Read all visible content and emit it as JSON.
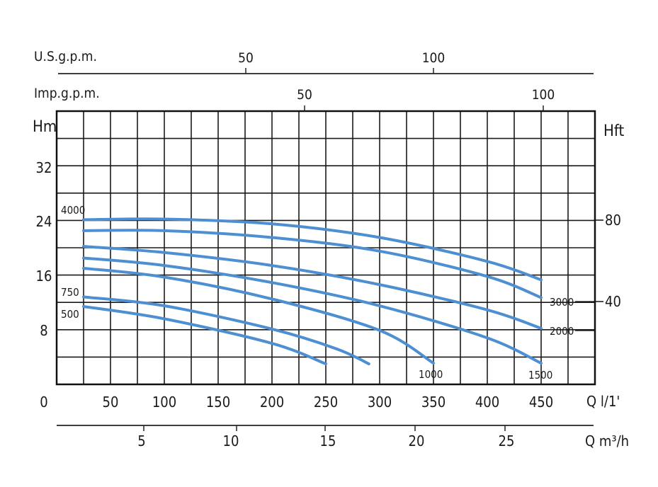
{
  "chart_data": {
    "type": "line",
    "title": "",
    "xlabel": "Q l/1'",
    "ylabel": "Hm",
    "y2label": "Hft",
    "xlim": [
      0,
      500
    ],
    "ylim": [
      0,
      40
    ],
    "y2_ticks": [
      "40",
      "80"
    ],
    "x_ticks": [
      "0",
      "50",
      "100",
      "150",
      "200",
      "250",
      "300",
      "350",
      "400",
      "450"
    ],
    "y_ticks": [
      "8",
      "16",
      "24",
      "32"
    ],
    "grid": true,
    "line_color": "#4d8fd1",
    "top_axis_usgpm": {
      "label": "U.S.g.p.m.",
      "ticks": [
        "50",
        "100"
      ]
    },
    "top_axis_impgpm": {
      "label": "Imp.g.p.m.",
      "ticks": [
        "50",
        "100"
      ]
    },
    "bottom_axis_m3h": {
      "label": "Q m³/h",
      "ticks": [
        "5",
        "10",
        "15",
        "20",
        "25"
      ]
    },
    "series": [
      {
        "name": "4000",
        "x": [
          25,
          100,
          200,
          300,
          400,
          450
        ],
        "y": [
          24.1,
          24.2,
          23.5,
          21.5,
          18.0,
          15.3
        ]
      },
      {
        "name": "3000",
        "x": [
          25,
          100,
          200,
          300,
          400,
          450
        ],
        "y": [
          22.5,
          22.5,
          21.5,
          19.5,
          15.8,
          12.7
        ]
      },
      {
        "name": "2000",
        "x": [
          25,
          100,
          200,
          300,
          400,
          450
        ],
        "y": [
          20.2,
          19.3,
          17.4,
          14.6,
          10.9,
          8.2
        ]
      },
      {
        "name": "1500",
        "x": [
          25,
          100,
          200,
          300,
          400,
          450
        ],
        "y": [
          18.5,
          17.4,
          14.9,
          11.5,
          6.8,
          3.1
        ]
      },
      {
        "name": "",
        "x": [
          25,
          100,
          200,
          300,
          350
        ],
        "y": [
          17.0,
          15.7,
          12.5,
          7.9,
          3.1
        ]
      },
      {
        "name": "1000",
        "x": [
          25,
          100,
          200,
          260,
          290
        ],
        "y": [
          12.8,
          11.5,
          8.1,
          5.2,
          3.0
        ]
      },
      {
        "name": "750",
        "x": [
          25,
          100,
          200,
          250
        ],
        "y": [
          11.4,
          9.6,
          6.0,
          3.0
        ]
      },
      {
        "name": "500",
        "x": [],
        "y": []
      }
    ],
    "labels": {
      "l4000": "4000",
      "l3000": "3000",
      "l2000": "2000",
      "l1500": "1500",
      "l1000": "1000",
      "l750": "750",
      "l500": "500"
    }
  }
}
